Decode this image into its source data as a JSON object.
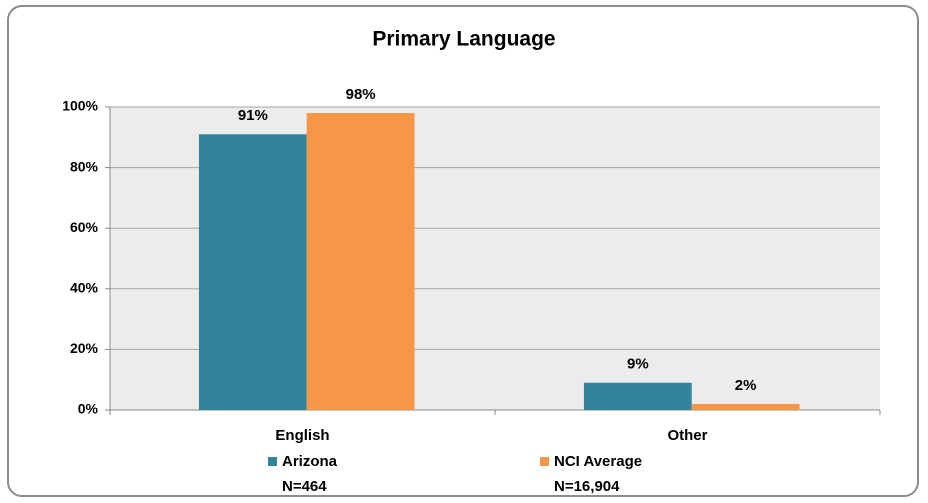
{
  "chart_data": {
    "type": "bar",
    "title": "Primary Language",
    "categories": [
      "English",
      "Other"
    ],
    "series": [
      {
        "name": "Arizona",
        "n": "N=464",
        "color": "#31849b",
        "values": [
          91,
          9
        ],
        "value_labels": [
          "91%",
          "9%"
        ]
      },
      {
        "name": "NCI Average",
        "n": "N=16,904",
        "color": "#f79646",
        "values": [
          98,
          2
        ],
        "value_labels": [
          "98%",
          "2%"
        ]
      }
    ],
    "ylim": [
      0,
      100
    ],
    "yticks": [
      {
        "value": 0,
        "label": "0%"
      },
      {
        "value": 20,
        "label": "20%"
      },
      {
        "value": 40,
        "label": "40%"
      },
      {
        "value": 60,
        "label": "60%"
      },
      {
        "value": 80,
        "label": "80%"
      },
      {
        "value": 100,
        "label": "100%"
      }
    ],
    "grid": true
  }
}
